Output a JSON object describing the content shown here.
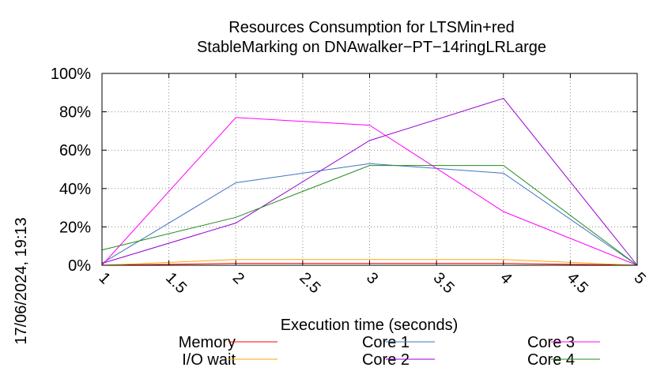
{
  "chart_data": {
    "type": "line",
    "title_lines": [
      "Resources Consumption for LTSMin+red",
      "StableMarking on DNAwalker−PT−14ringLRLarge"
    ],
    "xlabel": "Execution time (seconds)",
    "ylabel": "",
    "side_label": "17/06/2024, 19:13",
    "xlim": [
      1,
      5
    ],
    "ylim": [
      0,
      100
    ],
    "x_ticks": [
      1,
      1.5,
      2,
      2.5,
      3,
      3.5,
      4,
      4.5,
      5
    ],
    "x_tick_labels": [
      "1",
      "1.5",
      "2",
      "2.5",
      "3",
      "3.5",
      "4",
      "4.5",
      "5"
    ],
    "y_ticks": [
      0,
      20,
      40,
      60,
      80,
      100
    ],
    "y_tick_labels": [
      "0%",
      "20%",
      "40%",
      "60%",
      "80%",
      "100%"
    ],
    "grid": true,
    "legend_position": "bottom",
    "x": [
      1,
      2,
      3,
      4,
      5
    ],
    "series": [
      {
        "name": "Memory",
        "color": "#ff0000",
        "values": [
          0,
          1,
          1,
          1,
          0
        ]
      },
      {
        "name": "I/O wait",
        "color": "#ffa500",
        "values": [
          0,
          3,
          3,
          3,
          0
        ]
      },
      {
        "name": "Core 1",
        "color": "#4472c4",
        "values": [
          1,
          43,
          53,
          48,
          0
        ]
      },
      {
        "name": "Core 2",
        "color": "#9400d3",
        "values": [
          1,
          22,
          65,
          87,
          0
        ]
      },
      {
        "name": "Core 3",
        "color": "#ff00ff",
        "values": [
          0,
          77,
          73,
          28,
          0
        ]
      },
      {
        "name": "Core 4",
        "color": "#228b22",
        "values": [
          8,
          25,
          52,
          52,
          0
        ]
      }
    ]
  }
}
